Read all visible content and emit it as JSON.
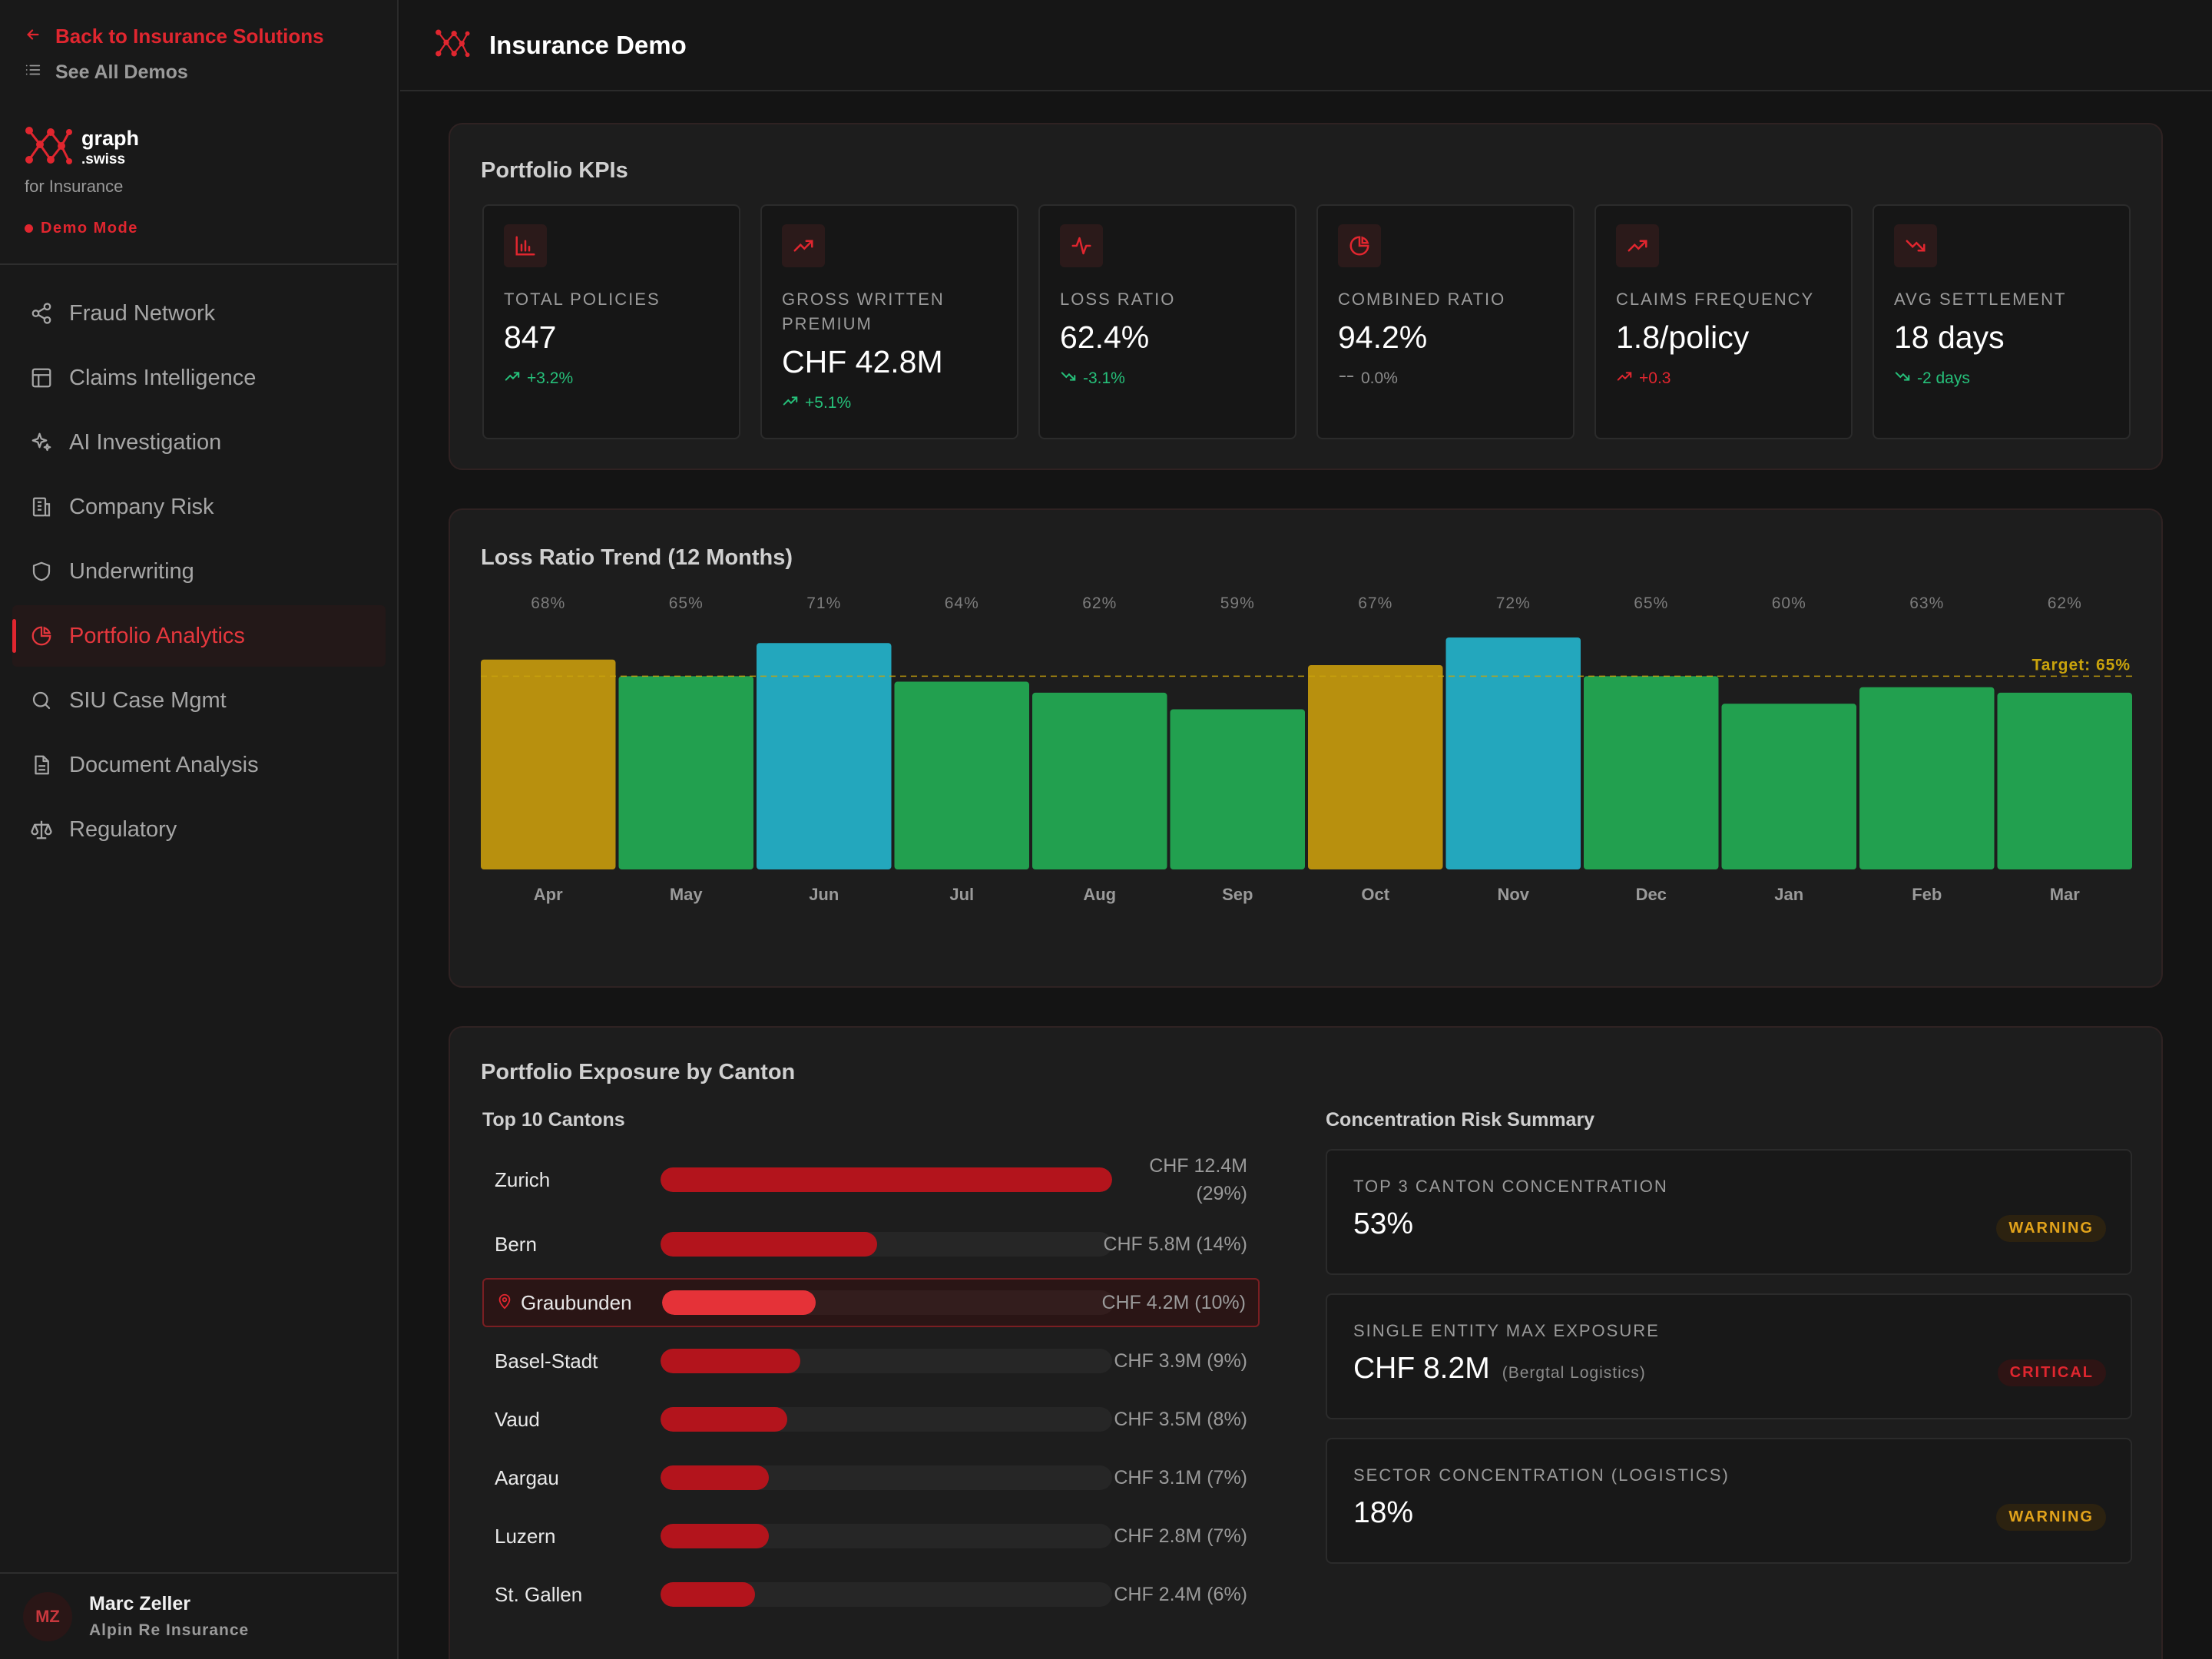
{
  "sidebar": {
    "back_label": "Back to Insurance Solutions",
    "see_all_label": "See All Demos",
    "brand_name": "graph",
    "brand_tld": ".swiss",
    "brand_sub": "for Insurance",
    "mode_label": "Demo Mode",
    "items": [
      {
        "label": "Fraud Network",
        "icon": "share-icon"
      },
      {
        "label": "Claims Intelligence",
        "icon": "table-icon"
      },
      {
        "label": "AI Investigation",
        "icon": "sparkles-icon"
      },
      {
        "label": "Company Risk",
        "icon": "building-icon"
      },
      {
        "label": "Underwriting",
        "icon": "shield-icon"
      },
      {
        "label": "Portfolio Analytics",
        "icon": "pie-chart-icon",
        "active": true
      },
      {
        "label": "SIU Case Mgmt",
        "icon": "search-icon"
      },
      {
        "label": "Document Analysis",
        "icon": "document-icon"
      },
      {
        "label": "Regulatory",
        "icon": "scale-icon"
      }
    ],
    "user": {
      "initials": "MZ",
      "name": "Marc Zeller",
      "org": "Alpin Re Insurance"
    }
  },
  "header": {
    "title": "Insurance Demo"
  },
  "kpis": {
    "title": "Portfolio KPIs",
    "items": [
      {
        "label": "Total Policies",
        "value": "847",
        "change": "+3.2%",
        "trend": "up-good",
        "icon": "bar-chart-icon"
      },
      {
        "label": "Gross Written Premium",
        "value": "CHF 42.8M",
        "change": "+5.1%",
        "trend": "up-good",
        "icon": "trending-up-icon"
      },
      {
        "label": "Loss Ratio",
        "value": "62.4%",
        "change": "-3.1%",
        "trend": "down-good",
        "icon": "activity-icon"
      },
      {
        "label": "Combined Ratio",
        "value": "94.2%",
        "change": "0.0%",
        "trend": "flat",
        "icon": "pie-chart-icon"
      },
      {
        "label": "Claims Frequency",
        "value": "1.8/policy",
        "change": "+0.3",
        "trend": "up-bad",
        "icon": "trending-up-icon"
      },
      {
        "label": "Avg Settlement",
        "value": "18 days",
        "change": "-2 days",
        "trend": "down-good",
        "icon": "trending-down-icon"
      }
    ]
  },
  "chart": {
    "title": "Loss Ratio Trend (12 Months)",
    "target_label": "Target: 65%",
    "colors": {
      "below": "#22a04f",
      "warning": "#b8900e",
      "above": "#23a7bd",
      "target": "#c9a30c"
    }
  },
  "chart_data": {
    "type": "bar",
    "categories": [
      "Apr",
      "May",
      "Jun",
      "Jul",
      "Aug",
      "Sep",
      "Oct",
      "Nov",
      "Dec",
      "Jan",
      "Feb",
      "Mar"
    ],
    "values": [
      68,
      65,
      71,
      64,
      62,
      59,
      67,
      72,
      65,
      60,
      63,
      62
    ],
    "value_labels": [
      "68%",
      "65%",
      "71%",
      "64%",
      "62%",
      "59%",
      "67%",
      "72%",
      "65%",
      "60%",
      "63%",
      "62%"
    ],
    "bar_colors": [
      "warning",
      "below",
      "above",
      "below",
      "below",
      "below",
      "warning",
      "above",
      "below",
      "below",
      "below",
      "below"
    ],
    "target": 65,
    "title": "Loss Ratio Trend (12 Months)",
    "ylim": [
      30,
      72
    ]
  },
  "exposure": {
    "title": "Portfolio Exposure by Canton",
    "left_title": "Top 10 Cantons",
    "right_title": "Concentration Risk Summary",
    "cantons": [
      {
        "name": "Zurich",
        "value": "CHF 12.4M (29%)",
        "share": 1.0
      },
      {
        "name": "Bern",
        "value": "CHF 5.8M (14%)",
        "share": 0.48
      },
      {
        "name": "Graubunden",
        "value": "CHF 4.2M (10%)",
        "share": 0.34,
        "highlight": true
      },
      {
        "name": "Basel-Stadt",
        "value": "CHF 3.9M (9%)",
        "share": 0.31
      },
      {
        "name": "Vaud",
        "value": "CHF 3.5M (8%)",
        "share": 0.28
      },
      {
        "name": "Aargau",
        "value": "CHF 3.1M (7%)",
        "share": 0.24
      },
      {
        "name": "Luzern",
        "value": "CHF 2.8M (7%)",
        "share": 0.24
      },
      {
        "name": "St. Gallen",
        "value": "CHF 2.4M (6%)",
        "share": 0.21
      }
    ],
    "risks": [
      {
        "label": "Top 3 Canton Concentration",
        "value": "53%",
        "note": "",
        "status": "Warning",
        "level": "warning"
      },
      {
        "label": "Single Entity Max Exposure",
        "value": "CHF 8.2M",
        "note": "(Bergtal Logistics)",
        "status": "Critical",
        "level": "critical"
      },
      {
        "label": "Sector Concentration (Logistics)",
        "value": "18%",
        "note": "",
        "status": "Warning",
        "level": "warning"
      }
    ]
  }
}
